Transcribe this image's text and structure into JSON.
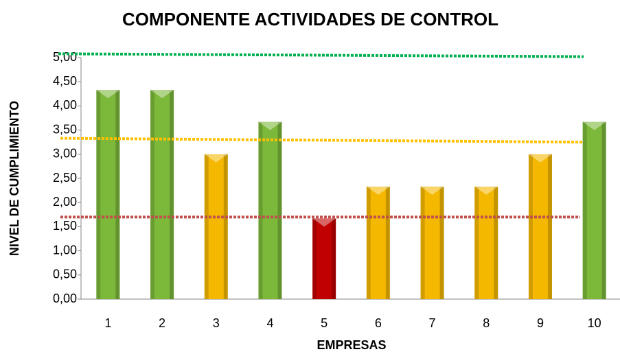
{
  "chart_data": {
    "type": "bar",
    "title": "COMPONENTE ACTIVIDADES DE CONTROL",
    "x_label": "EMPRESAS",
    "y_label": "NIVEL DE CUMPLIMIENTO",
    "categories": [
      "1",
      "2",
      "3",
      "4",
      "5",
      "6",
      "7",
      "8",
      "9",
      "10"
    ],
    "values": [
      4.33,
      4.33,
      3.0,
      3.67,
      1.67,
      2.33,
      2.33,
      2.33,
      3.0,
      3.67
    ],
    "colors": [
      "#7cb83a",
      "#7cb83a",
      "#f5b800",
      "#7cb83a",
      "#c00000",
      "#f5b800",
      "#f5b800",
      "#f5b800",
      "#f5b800",
      "#7cb83a"
    ],
    "reference_lines": [
      {
        "color": "#00b050",
        "values": [
          5.08,
          5.02
        ]
      },
      {
        "color": "#ffc000",
        "values": [
          3.33,
          3.25
        ]
      },
      {
        "color": "#c0504d",
        "values": [
          1.7,
          1.7
        ]
      }
    ],
    "ylim": [
      0,
      5
    ],
    "yticks": [
      {
        "value": 0,
        "label": "0,00"
      },
      {
        "value": 0.5,
        "label": "0,50"
      },
      {
        "value": 1,
        "label": "1,00"
      },
      {
        "value": 1.5,
        "label": "1,50"
      },
      {
        "value": 2,
        "label": "2,00"
      },
      {
        "value": 2.5,
        "label": "2,50"
      },
      {
        "value": 3,
        "label": "3,00"
      },
      {
        "value": 3.5,
        "label": "3,50"
      },
      {
        "value": 4,
        "label": "4,00"
      },
      {
        "value": 4.5,
        "label": "4,50"
      },
      {
        "value": 5,
        "label": "5,00"
      }
    ],
    "grid": false
  }
}
